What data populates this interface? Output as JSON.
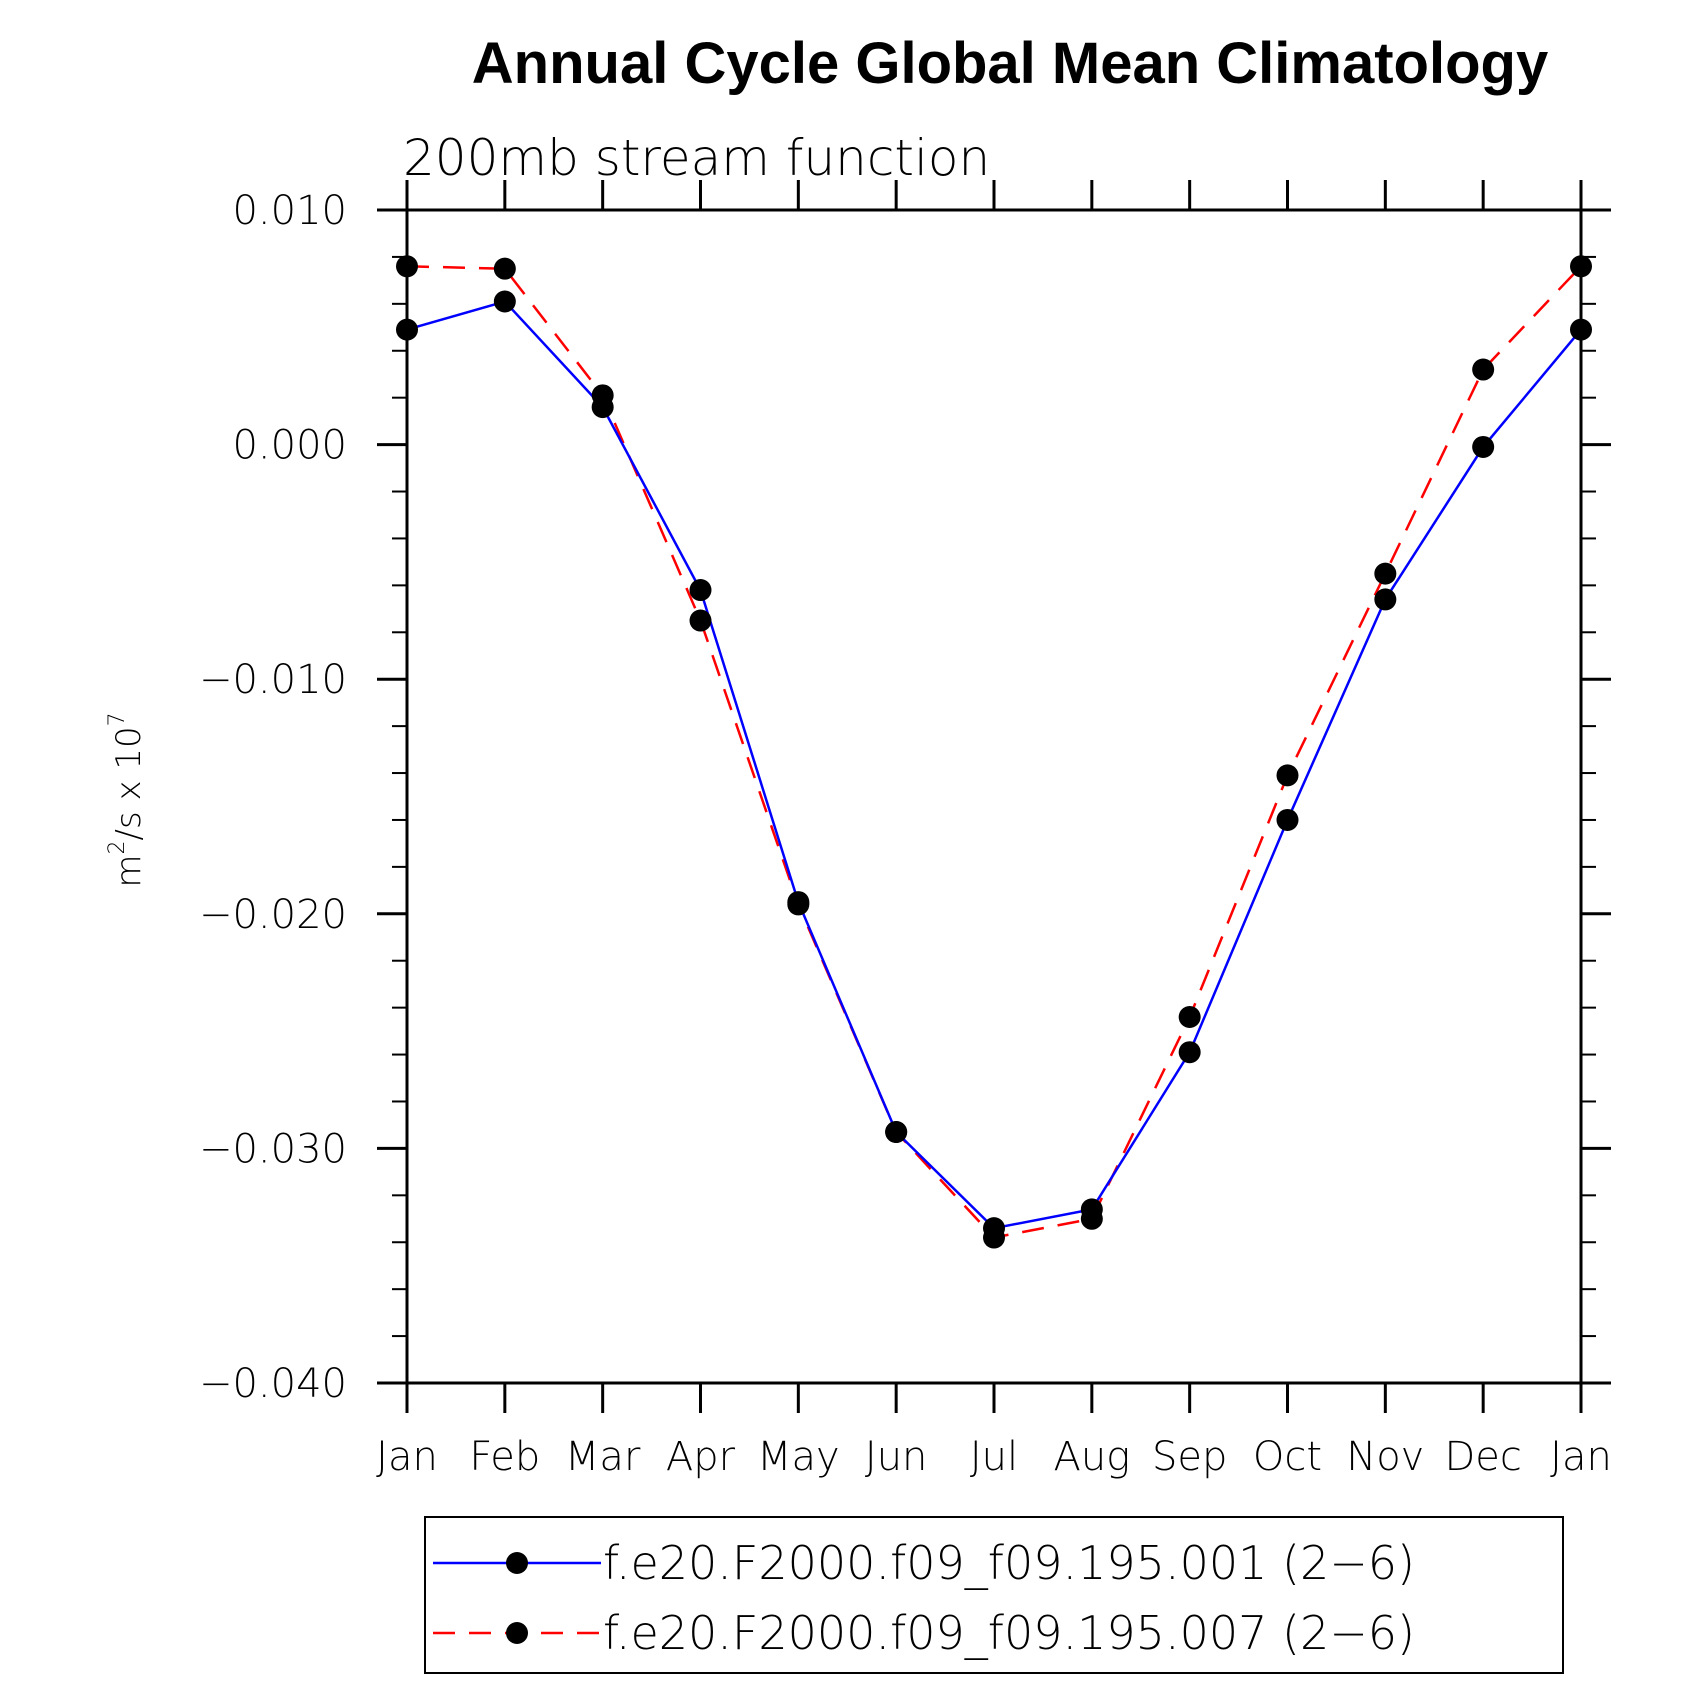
{
  "chart_data": {
    "type": "line",
    "title": "Annual Cycle Global Mean Climatology",
    "subtitle": "200mb stream function",
    "ylabel_base": "m",
    "ylabel_sup": "2",
    "ylabel_mid": "/s x 10",
    "ylabel_sup2": "7",
    "ylim": [
      -0.04,
      0.01
    ],
    "y_ticks": [
      "0.010",
      "0.000",
      "−0.010",
      "−0.020",
      "−0.030",
      "−0.040"
    ],
    "y_tick_values": [
      0.01,
      0.0,
      -0.01,
      -0.02,
      -0.03,
      -0.04
    ],
    "categories": [
      "Jan",
      "Feb",
      "Mar",
      "Apr",
      "May",
      "Jun",
      "Jul",
      "Aug",
      "Sep",
      "Oct",
      "Nov",
      "Dec",
      "Jan"
    ],
    "grid": false,
    "legend_placement": "bottom",
    "series": [
      {
        "name": "f.e20.F2000.f09_f09.195.001 (2−6)",
        "color": "#0000ff",
        "dash": "solid",
        "values": [
          0.0049,
          0.0061,
          0.0016,
          -0.0062,
          -0.0195,
          -0.0293,
          -0.0334,
          -0.0326,
          -0.0259,
          -0.016,
          -0.0066,
          -0.0001,
          0.0049
        ]
      },
      {
        "name": "f.e20.F2000.f09_f09.195.007 (2−6)",
        "color": "#ff0000",
        "dash": "dashed",
        "values": [
          0.0076,
          0.0075,
          0.0021,
          -0.0075,
          -0.0196,
          -0.0293,
          -0.0338,
          -0.033,
          -0.0244,
          -0.0141,
          -0.0055,
          0.0032,
          0.0076
        ]
      }
    ]
  }
}
